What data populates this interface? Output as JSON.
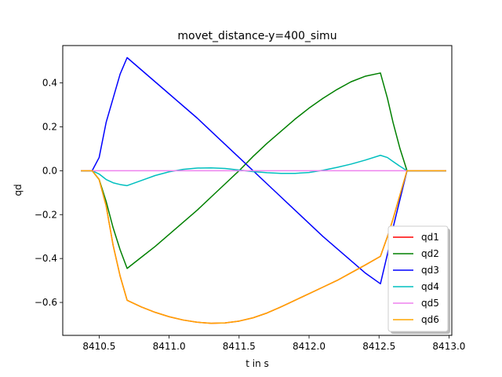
{
  "chart_data": {
    "type": "line",
    "title": "movet_distance-y=400_simu",
    "xlabel": "t in s",
    "ylabel": "qd",
    "xlim": [
      8410.24,
      8413.02
    ],
    "ylim": [
      -0.75,
      0.57
    ],
    "xticks": [
      8410.5,
      8411.0,
      8411.5,
      8412.0,
      8412.5,
      8413.0
    ],
    "xtick_labels": [
      "8410.5",
      "8411.0",
      "8411.5",
      "8412.0",
      "8412.5",
      "8413.0"
    ],
    "yticks": [
      -0.6,
      -0.4,
      -0.2,
      0.0,
      0.2,
      0.4
    ],
    "ytick_labels": [
      "−0.6",
      "−0.4",
      "−0.2",
      "0.0",
      "0.2",
      "0.4"
    ],
    "grid": false,
    "legend_position": "lower-right",
    "series": [
      {
        "name": "qd1",
        "color": "#ff0000",
        "x": [
          8410.37,
          8410.45,
          8410.5,
          8410.55,
          8410.6,
          8410.65,
          8410.7,
          8410.8,
          8410.9,
          8411.0,
          8411.1,
          8411.2,
          8411.3,
          8411.4,
          8411.5,
          8411.6,
          8411.7,
          8411.8,
          8411.9,
          8412.0,
          8412.1,
          8412.2,
          8412.3,
          8412.4,
          8412.51,
          8412.56,
          8412.6,
          8412.65,
          8412.7,
          8412.98
        ],
        "y": [
          0.0,
          0.0,
          -0.04,
          -0.16,
          -0.34,
          -0.48,
          -0.59,
          -0.62,
          -0.645,
          -0.665,
          -0.68,
          -0.69,
          -0.695,
          -0.693,
          -0.685,
          -0.67,
          -0.648,
          -0.62,
          -0.59,
          -0.56,
          -0.53,
          -0.5,
          -0.465,
          -0.43,
          -0.39,
          -0.3,
          -0.22,
          -0.11,
          0.0,
          0.0
        ]
      },
      {
        "name": "qd2",
        "color": "#008000",
        "x": [
          8410.37,
          8410.45,
          8410.5,
          8410.55,
          8410.6,
          8410.65,
          8410.7,
          8410.8,
          8410.9,
          8411.0,
          8411.1,
          8411.2,
          8411.3,
          8411.4,
          8411.5,
          8411.6,
          8411.7,
          8411.8,
          8411.9,
          8412.0,
          8412.1,
          8412.2,
          8412.3,
          8412.4,
          8412.51,
          8412.56,
          8412.6,
          8412.65,
          8412.7,
          8412.98
        ],
        "y": [
          0.0,
          0.0,
          -0.04,
          -0.14,
          -0.26,
          -0.36,
          -0.445,
          -0.395,
          -0.345,
          -0.29,
          -0.235,
          -0.18,
          -0.12,
          -0.06,
          0.0,
          0.065,
          0.125,
          0.18,
          0.235,
          0.285,
          0.33,
          0.37,
          0.405,
          0.43,
          0.445,
          0.33,
          0.22,
          0.1,
          0.0,
          0.0
        ]
      },
      {
        "name": "qd3",
        "color": "#0000ff",
        "x": [
          8410.37,
          8410.45,
          8410.5,
          8410.55,
          8410.6,
          8410.65,
          8410.7,
          8410.8,
          8410.9,
          8411.0,
          8411.1,
          8411.2,
          8411.3,
          8411.4,
          8411.5,
          8411.6,
          8411.7,
          8411.8,
          8411.9,
          8412.0,
          8412.1,
          8412.2,
          8412.3,
          8412.4,
          8412.51,
          8412.56,
          8412.6,
          8412.65,
          8412.7,
          8412.98
        ],
        "y": [
          0.0,
          0.0,
          0.06,
          0.22,
          0.33,
          0.44,
          0.515,
          0.46,
          0.405,
          0.35,
          0.295,
          0.24,
          0.18,
          0.12,
          0.06,
          0.0,
          -0.06,
          -0.12,
          -0.18,
          -0.24,
          -0.3,
          -0.355,
          -0.41,
          -0.465,
          -0.515,
          -0.38,
          -0.26,
          -0.13,
          0.0,
          0.0
        ]
      },
      {
        "name": "qd4",
        "color": "#00bfbf",
        "x": [
          8410.37,
          8410.45,
          8410.5,
          8410.55,
          8410.6,
          8410.65,
          8410.7,
          8410.8,
          8410.9,
          8411.0,
          8411.1,
          8411.2,
          8411.3,
          8411.4,
          8411.5,
          8411.6,
          8411.7,
          8411.8,
          8411.9,
          8412.0,
          8412.1,
          8412.2,
          8412.3,
          8412.4,
          8412.51,
          8412.56,
          8412.6,
          8412.65,
          8412.7,
          8412.98
        ],
        "y": [
          0.0,
          0.0,
          -0.015,
          -0.04,
          -0.055,
          -0.063,
          -0.068,
          -0.045,
          -0.022,
          -0.005,
          0.006,
          0.012,
          0.013,
          0.01,
          0.003,
          -0.004,
          -0.009,
          -0.012,
          -0.012,
          -0.008,
          0.002,
          0.015,
          0.03,
          0.048,
          0.07,
          0.06,
          0.042,
          0.02,
          0.0,
          0.0
        ]
      },
      {
        "name": "qd5",
        "color": "#ee82ee",
        "x": [
          8410.37,
          8410.7,
          8411.0,
          8411.5,
          8412.0,
          8412.5,
          8412.98
        ],
        "y": [
          0.0,
          0.0,
          0.0,
          0.0,
          0.0,
          0.0,
          0.0
        ]
      },
      {
        "name": "qd6",
        "color": "#ffa500",
        "x": [
          8410.37,
          8410.45,
          8410.5,
          8410.55,
          8410.6,
          8410.65,
          8410.7,
          8410.8,
          8410.9,
          8411.0,
          8411.1,
          8411.2,
          8411.3,
          8411.4,
          8411.5,
          8411.6,
          8411.7,
          8411.8,
          8411.9,
          8412.0,
          8412.1,
          8412.2,
          8412.3,
          8412.4,
          8412.51,
          8412.56,
          8412.6,
          8412.65,
          8412.7,
          8412.98
        ],
        "y": [
          0.0,
          0.0,
          -0.04,
          -0.16,
          -0.34,
          -0.48,
          -0.59,
          -0.62,
          -0.645,
          -0.665,
          -0.68,
          -0.69,
          -0.695,
          -0.693,
          -0.685,
          -0.67,
          -0.648,
          -0.62,
          -0.59,
          -0.56,
          -0.53,
          -0.5,
          -0.465,
          -0.43,
          -0.39,
          -0.3,
          -0.22,
          -0.11,
          0.0,
          0.0
        ]
      }
    ]
  }
}
